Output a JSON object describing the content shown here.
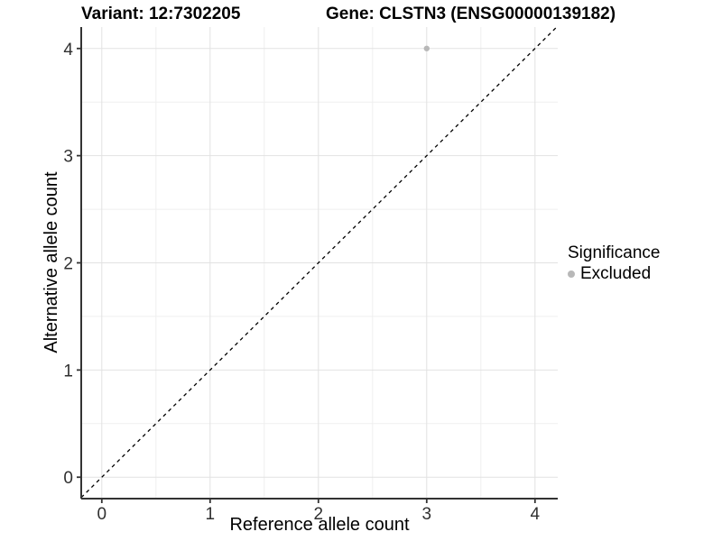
{
  "header": {
    "variant_title": "Variant: 12:7302205",
    "gene_title": "Gene: CLSTN3 (ENSG00000139182)"
  },
  "legend": {
    "title": "Significance",
    "items": [
      {
        "label": "Excluded",
        "color": "#b8b8b8",
        "marker": "circle"
      }
    ]
  },
  "chart_data": {
    "type": "scatter",
    "title": "Variant: 12:7302205    Gene: CLSTN3 (ENSG00000139182)",
    "xlabel": "Reference allele count",
    "ylabel": "Alternative allele count",
    "xlim": [
      -0.19,
      4.21
    ],
    "ylim": [
      -0.2,
      4.2
    ],
    "x_ticks": [
      0,
      1,
      2,
      3,
      4
    ],
    "y_ticks": [
      0,
      1,
      2,
      3,
      4
    ],
    "x_minor_ticks": [
      0.5,
      1.5,
      2.5,
      3.5
    ],
    "y_minor_ticks": [
      0.5,
      1.5,
      2.5,
      3.5
    ],
    "grid": true,
    "legend_position": "right",
    "series": [
      {
        "name": "Excluded",
        "color": "#b8b8b8",
        "points": [
          {
            "x": 3,
            "y": 4
          }
        ]
      }
    ],
    "reference_line": {
      "equation": "y = x",
      "style": "dashed",
      "color": "#000000"
    },
    "style": {
      "axis_line_color": "#333333",
      "tick_color": "#333333",
      "tick_label_color": "#303030",
      "grid_major_color": "#e2e2e2",
      "grid_minor_color": "#efefef",
      "background": "#ffffff"
    }
  }
}
